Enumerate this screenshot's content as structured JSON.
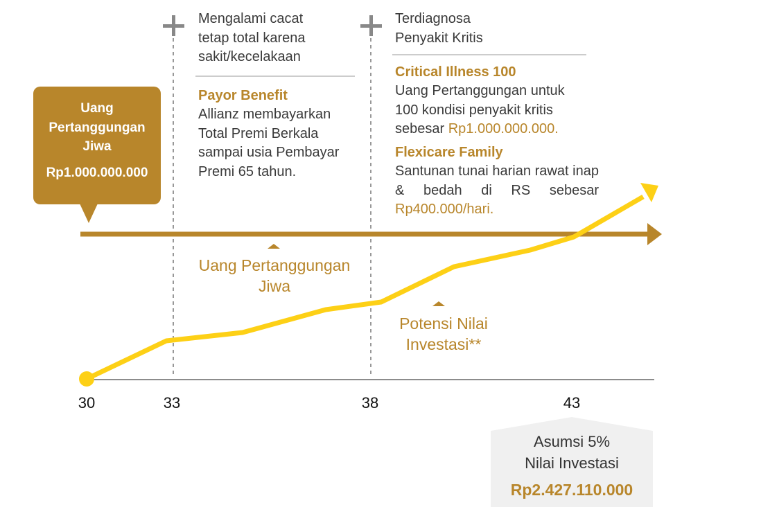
{
  "callout": {
    "title": "Uang Pertanggungan Jiwa",
    "amount": "Rp1.000.000.000"
  },
  "events": [
    {
      "title": "Mengalami cacat tetap total karena sakit/kecelakaan"
    },
    {
      "title": "Terdiagnosa Penyakit Kritis"
    }
  ],
  "benefits": {
    "payor": {
      "name": "Payor Benefit",
      "desc": "Allianz membayarkan Total Premi Berkala sampai usia Pembayar Premi 65 tahun."
    },
    "critical": {
      "name": "Critical Illness 100",
      "desc": "Uang Pertanggungan untuk 100 kondisi penyakit kritis sebesar",
      "amount": "Rp1.000.000.000."
    },
    "flexicare": {
      "name": "Flexicare Family",
      "desc": "Santunan tunai harian rawat inap & bedah di RS sebesar",
      "amount": "Rp400.000/hari."
    }
  },
  "line_labels": {
    "sum_assured": "Uang Pertanggungan Jiwa",
    "investment": "Potensi Nilai Investasi**"
  },
  "axis_ticks": [
    "30",
    "33",
    "38",
    "43"
  ],
  "assumption": {
    "line1": "Asumsi 5%",
    "line2": "Nilai Investasi",
    "amount": "Rp2.427.110.000"
  },
  "colors": {
    "gold": "#b8862b",
    "yellow": "#fdd016",
    "gray": "#777777",
    "light_gray": "#f0f0f0"
  }
}
